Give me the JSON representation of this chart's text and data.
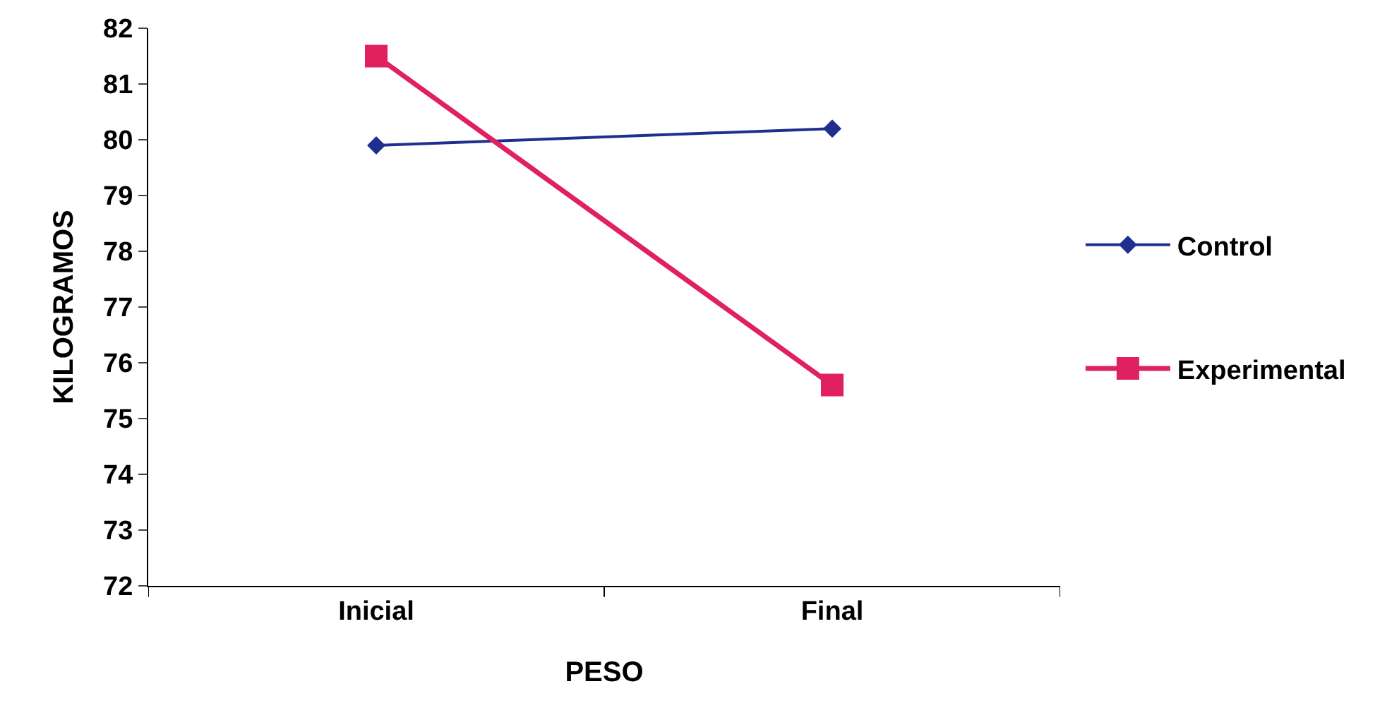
{
  "chart_data": {
    "type": "line",
    "xlabel": "PESO",
    "ylabel": "KILOGRAMOS",
    "categories": [
      "Inicial",
      "Final"
    ],
    "series": [
      {
        "name": "Control",
        "color": "#1f2f8f",
        "values": [
          79.9,
          80.2
        ],
        "marker": "diamond"
      },
      {
        "name": "Experimental",
        "color": "#e0205f",
        "values": [
          81.5,
          75.6
        ],
        "marker": "square"
      }
    ],
    "ylim": [
      72,
      82
    ],
    "yticks": [
      72,
      73,
      74,
      75,
      76,
      77,
      78,
      79,
      80,
      81,
      82
    ],
    "legend": "right",
    "line_style": "solid"
  }
}
